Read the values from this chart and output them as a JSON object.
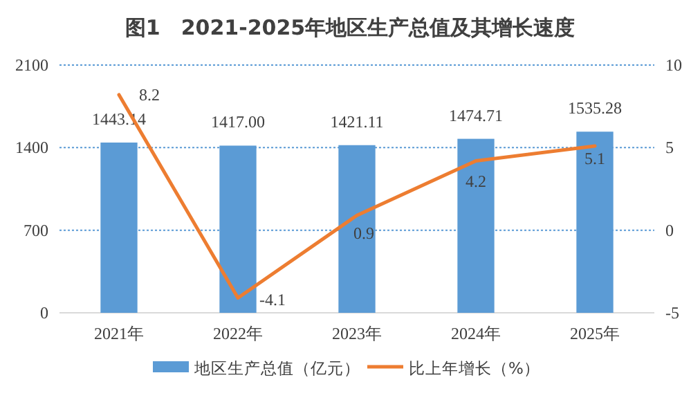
{
  "chart_data": {
    "type": "bar",
    "title": "图1　2021-2025年地区生产总值及其增长速度",
    "categories": [
      "2021年",
      "2022年",
      "2023年",
      "2024年",
      "2025年"
    ],
    "series": [
      {
        "name": "地区生产总值（亿元）",
        "color": "#5b9bd5",
        "values": [
          1443.14,
          1417.0,
          1421.11,
          1474.71,
          1535.28
        ],
        "value_labels": [
          "1443.14",
          "1417.00",
          "1421.11",
          "1474.71",
          "1535.28"
        ]
      },
      {
        "name": "比上年增长（%）",
        "type": "line",
        "axis": "y2",
        "color": "#ed7d31",
        "values": [
          8.2,
          -4.1,
          0.9,
          4.2,
          5.1
        ],
        "value_labels": [
          "8.2",
          "-4.1",
          "0.9",
          "4.2",
          "5.1"
        ]
      }
    ],
    "ylim": [
      0,
      2100
    ],
    "yticks": [
      0,
      700,
      1400,
      2100
    ],
    "y2lim": [
      -5,
      10
    ],
    "y2ticks": [
      -5,
      0,
      5,
      10
    ],
    "grid": "y",
    "legend": "bottom",
    "line_style": "solid",
    "marker": "none"
  }
}
